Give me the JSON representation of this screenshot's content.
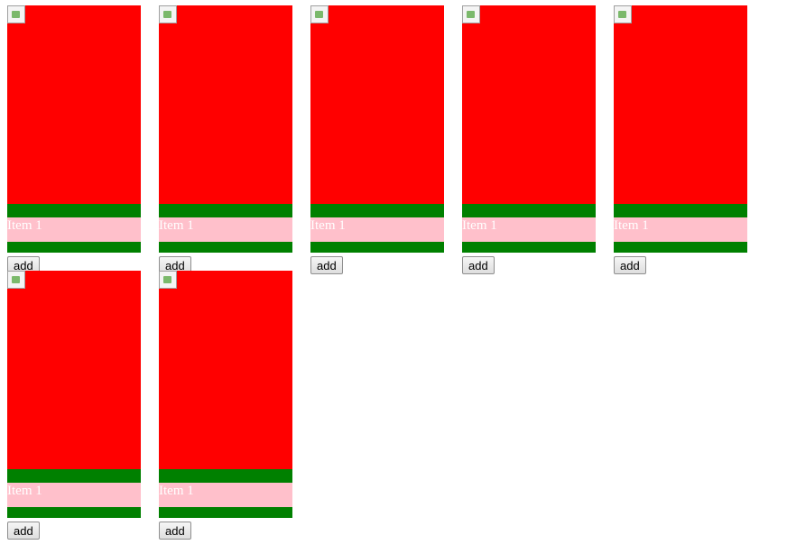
{
  "items": [
    {
      "label": "Item 1",
      "button": "add"
    },
    {
      "label": "Item 1",
      "button": "add"
    },
    {
      "label": "Item 1",
      "button": "add"
    },
    {
      "label": "Item 1",
      "button": "add"
    },
    {
      "label": "Item 1",
      "button": "add"
    },
    {
      "label": "Item 1",
      "button": "add"
    },
    {
      "label": "Item 1",
      "button": "add"
    }
  ]
}
